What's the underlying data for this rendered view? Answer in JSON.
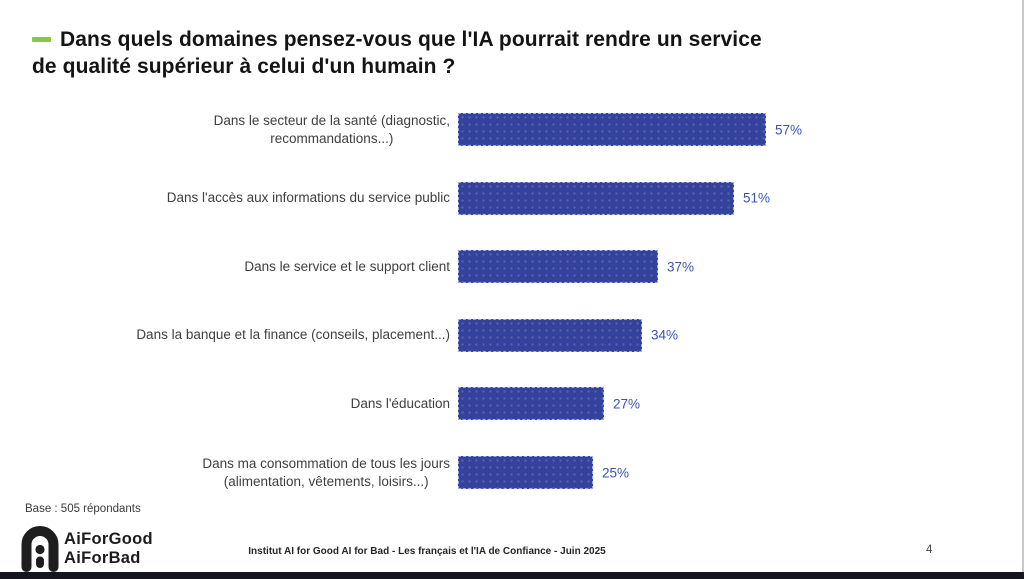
{
  "slide": {
    "title": "Dans quels domaines pensez-vous que l'IA pourrait rendre un service\nde qualité supérieur à celui d'un humain ?",
    "accent_green": "#8DC63F",
    "base_note": "Base : 505 répondants",
    "footer_caption": "Institut AI for Good AI for Bad - Les français et l'IA de Confiance - Juin 2025",
    "page_number": "4",
    "logo": {
      "icon": "aiforgood-arch-icon",
      "line1": "AiForGood",
      "line2": "AiForBad"
    }
  },
  "chart_data": {
    "type": "bar",
    "orientation": "horizontal",
    "title": "Dans quels domaines pensez-vous que l'IA pourrait rendre un service de qualité supérieur à celui d'un humain ?",
    "categories": [
      "Dans le secteur de la santé (diagnostic,\nrecommandations...)",
      "Dans l'accès aux informations du service public",
      "Dans le service et le support client",
      "Dans la banque et la finance (conseils, placement...)",
      "Dans l'éducation",
      "Dans ma consommation de tous les jours\n(alimentation, vêtements, loisirs...)"
    ],
    "values": [
      57,
      51,
      37,
      34,
      27,
      25
    ],
    "value_labels": [
      "57%",
      "51%",
      "37%",
      "34%",
      "27%",
      "25%"
    ],
    "unit": "%",
    "xlim": [
      0,
      60
    ],
    "bar_color": "#34419D",
    "value_label_color": "#3A53B4",
    "category_label_color": "#3f3f3f",
    "grid": false,
    "legend": false
  }
}
